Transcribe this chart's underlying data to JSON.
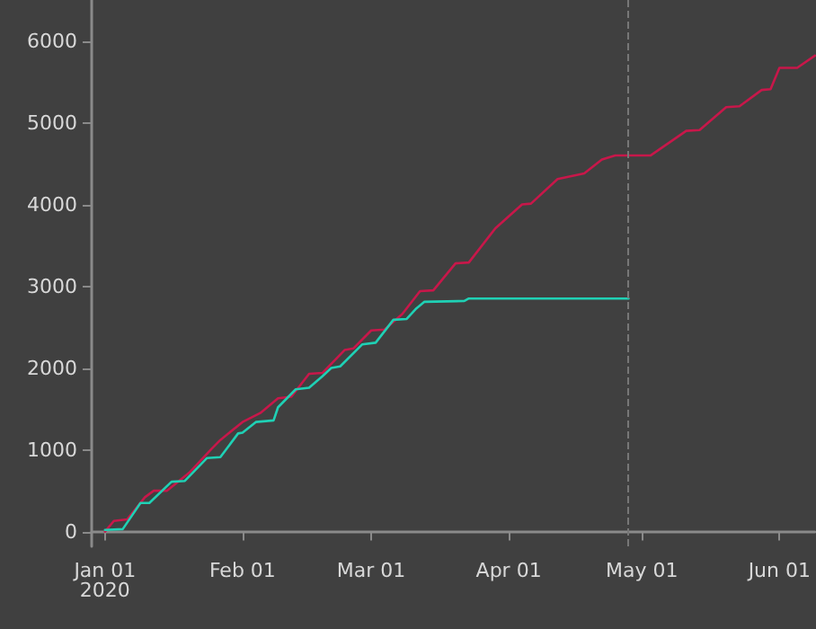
{
  "chart_data": {
    "type": "line",
    "x": [
      "2020-01-01",
      "2020-01-03",
      "2020-01-06",
      "2020-01-10",
      "2020-01-12",
      "2020-01-15",
      "2020-01-20",
      "2020-01-25",
      "2020-01-27",
      "2020-02-01",
      "2020-02-05",
      "2020-02-09",
      "2020-02-12",
      "2020-02-16",
      "2020-02-19",
      "2020-02-24",
      "2020-02-26",
      "2020-03-01",
      "2020-03-04",
      "2020-03-08",
      "2020-03-12",
      "2020-03-15",
      "2020-03-20",
      "2020-03-23",
      "2020-03-29",
      "2020-04-04",
      "2020-04-06",
      "2020-04-12",
      "2020-04-18",
      "2020-04-22",
      "2020-04-25",
      "2020-05-03",
      "2020-05-11",
      "2020-05-14",
      "2020-05-20",
      "2020-05-23",
      "2020-05-28",
      "2020-05-30",
      "2020-06-01",
      "2020-06-05",
      "2020-06-09"
    ],
    "series": [
      {
        "color": "#c8174a",
        "values": [
          0,
          130,
          150,
          420,
          500,
          500,
          720,
          1010,
          1120,
          1340,
          1450,
          1630,
          1650,
          1930,
          1940,
          2220,
          2240,
          2460,
          2470,
          2660,
          2940,
          2950,
          3280,
          3290,
          3710,
          4000,
          4010,
          4310,
          4380,
          4550,
          4600,
          4600,
          4900,
          4910,
          5190,
          5200,
          5400,
          5410,
          5670,
          5670,
          5820
        ]
      },
      {
        "color": "#1fd1b5",
        "x": [
          "2020-01-01",
          "2020-01-05",
          "2020-01-09",
          "2020-01-11",
          "2020-01-16",
          "2020-01-19",
          "2020-01-24",
          "2020-01-27",
          "2020-01-31",
          "2020-02-01",
          "2020-02-04",
          "2020-02-08",
          "2020-02-09",
          "2020-02-13",
          "2020-02-16",
          "2020-02-19",
          "2020-02-21",
          "2020-02-23",
          "2020-02-28",
          "2020-03-02",
          "2020-03-06",
          "2020-03-09",
          "2020-03-11",
          "2020-03-13",
          "2020-03-22",
          "2020-03-23",
          "2020-04-28"
        ],
        "values": [
          20,
          30,
          350,
          350,
          610,
          620,
          900,
          910,
          1200,
          1210,
          1340,
          1360,
          1520,
          1740,
          1760,
          1900,
          2000,
          2020,
          2290,
          2310,
          2590,
          2600,
          2720,
          2810,
          2820,
          2850,
          2850
        ]
      }
    ],
    "xlim": [
      "2019-12-29",
      "2020-06-09"
    ],
    "xticks": [
      {
        "value": "2020-01-01",
        "label": "Jan 01\n2020"
      },
      {
        "value": "2020-02-01",
        "label": "Feb 01"
      },
      {
        "value": "2020-03-01",
        "label": "Mar 01"
      },
      {
        "value": "2020-04-01",
        "label": "Apr 01"
      },
      {
        "value": "2020-05-01",
        "label": "May 01"
      },
      {
        "value": "2020-06-01",
        "label": "Jun 01"
      }
    ],
    "ylim": [
      -180,
      6500
    ],
    "yticks": [
      0,
      1000,
      2000,
      3000,
      4000,
      5000,
      6000
    ],
    "ref_lines": [
      {
        "axis": "x",
        "value": "2020-04-28",
        "color": "#777777",
        "line_style": "dashed"
      }
    ],
    "grid": false,
    "marker": "none",
    "line_style": "solid"
  }
}
